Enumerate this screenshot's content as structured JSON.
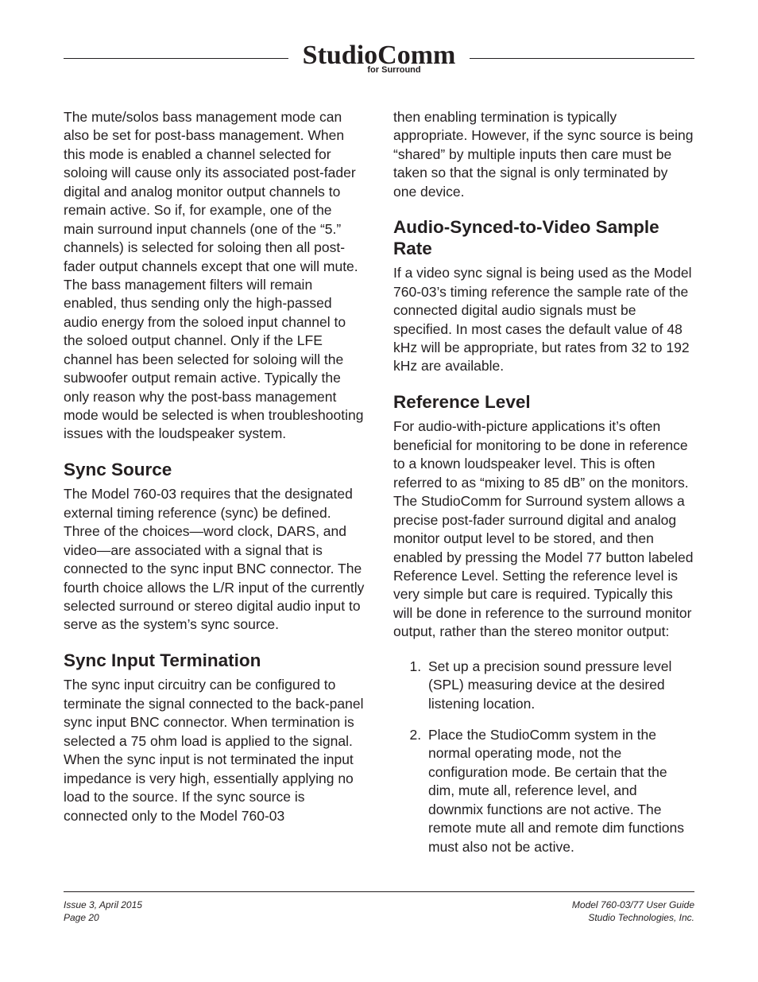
{
  "logo": {
    "script": "StudioComm",
    "sub": "for Surround"
  },
  "left_column": {
    "para1": "The mute/solos bass management mode can also be set for post-bass management. When this mode is enabled a channel selected for soloing will cause only its associated post-fader digital and analog monitor output channels to remain active. So if, for example, one of the main surround input channels (one of the “5.” channels) is selected for soloing then all post-fader output channels except that one will mute. The bass management filters will remain enabled, thus sending only the high-passed audio energy from the soloed input channel to the soloed output channel. Only if the LFE channel has been selected for soloing will the subwoofer output remain active. Typically the only reason why the post-bass management mode would be selected is when troubleshooting issues with the loudspeaker system.",
    "h_sync_source": "Sync Source",
    "para2": "The Model 760-03 requires that the designated external timing reference (sync) be defined. Three of the choices—word clock, DARS, and video—are associated with a signal that is connected to the sync input BNC connector. The fourth choice allows the L/R input of the currently selected surround or stereo digital audio input to serve as the system’s sync source.",
    "h_sync_term": "Sync Input Termination",
    "para3": "The sync input circuitry can be configured to terminate the signal connected to the back-panel sync input BNC connector. When termination is selected a 75 ohm load is applied to the signal. When the sync input is not terminated the input impedance is very high, essentially applying no load to the source. If the sync source is connected only to the Model 760-03"
  },
  "right_column": {
    "para1": "then enabling termination is typically appropriate. However, if the sync source is being “shared” by multiple inputs then care must be taken so that the signal is only terminated by one device.",
    "h_audio_sync": "Audio-Synced-to-Video Sample Rate",
    "para2": "If a video sync signal is being used as the Model 760-03’s timing reference the sample rate of the connected digital audio signals must be specified. In most cases the default value of 48 kHz will be appropriate, but rates from 32 to 192 kHz are available.",
    "h_ref_level": "Reference Level",
    "para3": "For audio-with-picture applications it’s often beneficial for monitoring to be done in reference to a known loudspeaker level. This is often referred to as “mixing to 85 dB” on the monitors. The StudioComm for Surround system allows a precise post-fader surround digital and analog monitor output level to be stored, and then enabled by pressing the Model 77 button labeled Reference Level. Setting the reference level is very simple but care is required. Typically this will be done in reference to the surround monitor output, rather than the stereo monitor output:",
    "steps": [
      "Set up a precision sound pressure level (SPL) measuring device at the desired listening location.",
      "Place the StudioComm system in the normal operating mode, not the configuration mode. Be certain that the dim, mute all, reference level, and downmix functions are not active. The remote mute all and remote dim functions must also not be active."
    ]
  },
  "footer": {
    "left_line1": "Issue 3, April 2015",
    "left_line2": "Page 20",
    "right_line1": "Model 760-03/77 User Guide",
    "right_line2": "Studio Technologies, Inc."
  }
}
